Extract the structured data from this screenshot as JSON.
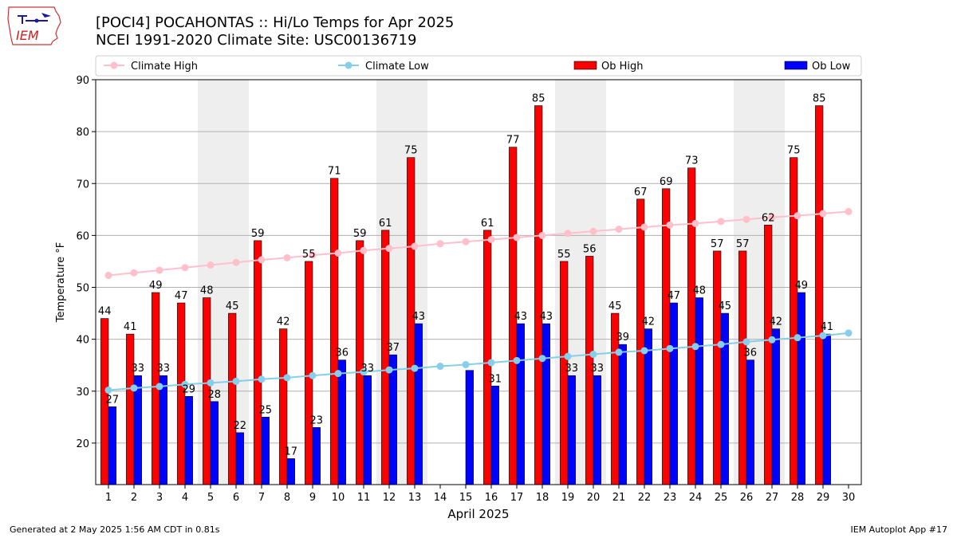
{
  "header": {
    "logo_text": "IEM",
    "title_line1": "[POCI4] POCAHONTAS :: Hi/Lo Temps for Apr 2025",
    "title_line2": "NCEI 1991-2020 Climate Site: USC00136719"
  },
  "footer": {
    "left": "Generated at 2 May 2025 1:56 AM CDT in 0.81s",
    "right": "IEM Autoplot App #17"
  },
  "chart_data": {
    "type": "bar",
    "xlabel": "April 2025",
    "ylabel": "Temperature °F",
    "ylim": [
      12,
      90
    ],
    "xlim": [
      0.5,
      30.5
    ],
    "yticks": [
      20,
      30,
      40,
      50,
      60,
      70,
      80,
      90
    ],
    "grid": "horizontal",
    "legend_placement": "top",
    "weekend_shading": [
      [
        5,
        6
      ],
      [
        12,
        13
      ],
      [
        19,
        20
      ],
      [
        26,
        27
      ]
    ],
    "weekend_color": "#eeeeee",
    "categories": [
      1,
      2,
      3,
      4,
      5,
      6,
      7,
      8,
      9,
      10,
      11,
      12,
      13,
      14,
      15,
      16,
      17,
      18,
      19,
      20,
      21,
      22,
      23,
      24,
      25,
      26,
      27,
      28,
      29,
      30
    ],
    "series": [
      {
        "name": "Climate High",
        "kind": "line",
        "color": "#ffc0cb",
        "values": [
          52.3,
          52.8,
          53.3,
          53.8,
          54.3,
          54.8,
          55.3,
          55.7,
          56.2,
          56.6,
          57.1,
          57.5,
          57.9,
          58.4,
          58.8,
          59.2,
          59.6,
          60.0,
          60.4,
          60.8,
          61.2,
          61.6,
          62.0,
          62.3,
          62.7,
          63.1,
          63.5,
          63.8,
          64.2,
          64.6
        ]
      },
      {
        "name": "Climate Low",
        "kind": "line",
        "color": "#87ceeb",
        "values": [
          30.2,
          30.6,
          30.9,
          31.3,
          31.6,
          31.9,
          32.3,
          32.6,
          33.0,
          33.4,
          33.7,
          34.1,
          34.4,
          34.8,
          35.1,
          35.5,
          35.9,
          36.3,
          36.7,
          37.1,
          37.5,
          37.8,
          38.2,
          38.6,
          39.0,
          39.5,
          39.9,
          40.3,
          40.7,
          41.2
        ]
      },
      {
        "name": "Ob High",
        "kind": "bar",
        "color": "#ff0000",
        "values": [
          44,
          41,
          49,
          47,
          48,
          45,
          59,
          42,
          55,
          71,
          59,
          61,
          75,
          null,
          null,
          61,
          77,
          85,
          55,
          56,
          45,
          67,
          69,
          73,
          57,
          57,
          62,
          75,
          85,
          null
        ]
      },
      {
        "name": "Ob Low",
        "kind": "bar",
        "color": "#0000ff",
        "values": [
          27,
          33,
          33,
          29,
          28,
          22,
          25,
          17,
          23,
          36,
          33,
          37,
          43,
          null,
          34,
          31,
          43,
          43,
          33,
          33,
          39,
          42,
          47,
          48,
          45,
          36,
          42,
          49,
          41,
          null
        ]
      }
    ],
    "data_labels": {
      "Ob High": [
        44,
        41,
        49,
        47,
        48,
        45,
        59,
        42,
        55,
        71,
        59,
        61,
        75,
        null,
        null,
        61,
        77,
        85,
        55,
        56,
        45,
        67,
        69,
        73,
        57,
        57,
        62,
        75,
        85,
        null
      ],
      "Ob Low": [
        27,
        33,
        33,
        29,
        28,
        22,
        25,
        17,
        23,
        36,
        33,
        37,
        43,
        null,
        null,
        31,
        43,
        43,
        33,
        33,
        39,
        42,
        47,
        48,
        45,
        36,
        42,
        49,
        41,
        null
      ]
    }
  }
}
